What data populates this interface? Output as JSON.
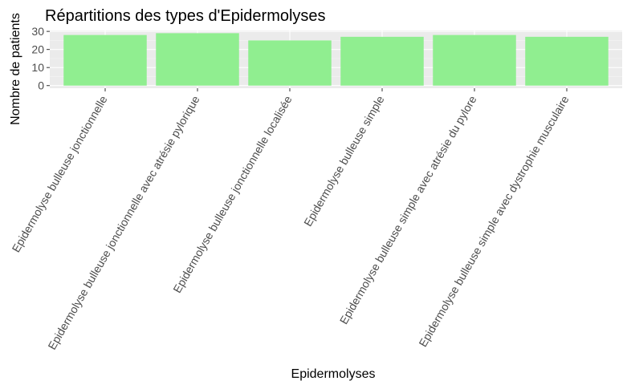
{
  "chart_data": {
    "type": "bar",
    "title": "Répartitions des types d'Epidermolyses",
    "xlabel": "Epidermolyses",
    "ylabel": "Nombre de patients",
    "categories": [
      "Epidermolyse bulleuse jonctionnelle",
      "Epidermolyse bulleuse jonctionnelle avec atrésie pylorique",
      "Epidermolyse bulleuse jonctionnelle localisée",
      "Epidermolyse bulleuse simple",
      "Epidermolyse bulleuse simple avec atrésie du pylore",
      "Epidermolyse bulleuse simple avec dystrophie musculaire"
    ],
    "values": [
      28,
      29,
      25,
      27,
      28,
      27
    ],
    "yticks": [
      0,
      10,
      20,
      30
    ],
    "ylim": [
      -1.45,
      30.5
    ],
    "grid": true,
    "legend": "none",
    "colors": {
      "bar": "#90EE90",
      "panel": "#EBEBEB",
      "grid_major": "#FFFFFF",
      "grid_minor": "#F5F5F5"
    }
  }
}
